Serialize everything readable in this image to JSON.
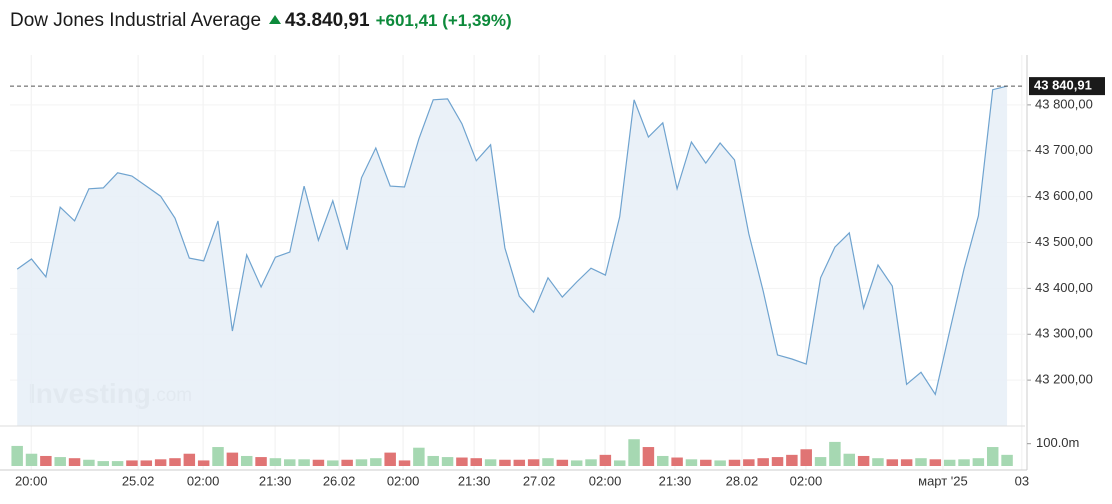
{
  "chart_data": {
    "type": "line",
    "title": "Dow Jones Industrial Average",
    "price": "43.840,91",
    "change": "+601,41 (+1,39%)",
    "last_price_label": "43 840,91",
    "watermark": "Investing",
    "watermark_suffix": ".com",
    "color": "#6fa3cf",
    "fill_color": "#e6eef7",
    "up_color": "#a6d8b2",
    "down_color": "#e07474",
    "grid": true,
    "ylim": [
      43100,
      43900
    ],
    "yticks": [
      {
        "value": 43200,
        "label": "43 200,00"
      },
      {
        "value": 43300,
        "label": "43 300,00"
      },
      {
        "value": 43400,
        "label": "43 400,00"
      },
      {
        "value": 43500,
        "label": "43 500,00"
      },
      {
        "value": 43600,
        "label": "43 600,00"
      },
      {
        "value": 43700,
        "label": "43 700,00"
      },
      {
        "value": 43800,
        "label": "43 800,00"
      }
    ],
    "xlim": [
      -0.5,
      70.25
    ],
    "xticks": [
      {
        "value": 0.98,
        "label": "20:00"
      },
      {
        "value": 8.43,
        "label": "25.02"
      },
      {
        "value": 12.96,
        "label": "02:00"
      },
      {
        "value": 17.98,
        "label": "21:30"
      },
      {
        "value": 22.44,
        "label": "26.02"
      },
      {
        "value": 26.9,
        "label": "02:00"
      },
      {
        "value": 31.85,
        "label": "21:30"
      },
      {
        "value": 36.38,
        "label": "27.02"
      },
      {
        "value": 40.98,
        "label": "02:00"
      },
      {
        "value": 45.85,
        "label": "21:30"
      },
      {
        "value": 50.52,
        "label": "28.02"
      },
      {
        "value": 54.98,
        "label": "02:00"
      },
      {
        "value": 64.53,
        "label": "март '25"
      },
      {
        "value": 70.03,
        "label": "03"
      }
    ],
    "values": [
      43442,
      43464,
      43425,
      43577,
      43547,
      43617,
      43619,
      43652,
      43645,
      43623,
      43601,
      43553,
      43466,
      43460,
      43547,
      43307,
      43473,
      43403,
      43468,
      43479,
      43623,
      43505,
      43591,
      43484,
      43641,
      43706,
      43623,
      43621,
      43726,
      43811,
      43813,
      43759,
      43678,
      43713,
      43488,
      43383,
      43348,
      43423,
      43381,
      43414,
      43444,
      43429,
      43556,
      43811,
      43730,
      43761,
      43617,
      43719,
      43673,
      43717,
      43680,
      43519,
      43394,
      43255,
      43246,
      43235,
      43423,
      43490,
      43521,
      43357,
      43451,
      43405,
      43191,
      43217,
      43169,
      43307,
      43442,
      43558,
      43833,
      43840.91
    ],
    "volume_ylim": [
      0,
      130
    ],
    "volume_ticks": [
      {
        "value": 100,
        "label": "100.0m"
      }
    ],
    "volume": [
      90,
      55,
      45,
      40,
      35,
      28,
      22,
      22,
      25,
      25,
      30,
      35,
      55,
      25,
      85,
      60,
      45,
      40,
      35,
      30,
      30,
      28,
      25,
      28,
      30,
      35,
      60,
      25,
      82,
      45,
      40,
      38,
      35,
      30,
      28,
      28,
      30,
      35,
      28,
      25,
      30,
      50,
      25,
      120,
      85,
      45,
      38,
      30,
      28,
      25,
      28,
      30,
      35,
      40,
      50,
      75,
      40,
      108,
      55,
      45,
      35,
      30,
      30,
      35,
      30,
      28,
      30,
      35,
      85,
      50
    ]
  }
}
